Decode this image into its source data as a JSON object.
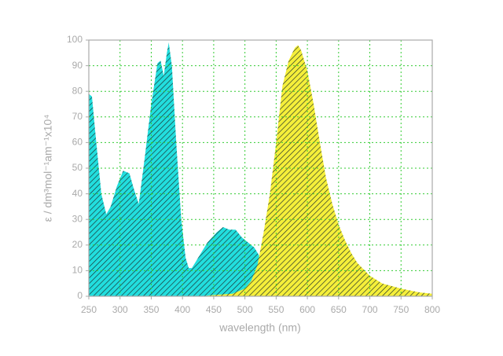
{
  "chart_data": {
    "type": "area",
    "xlabel": "wavelength (nm)",
    "ylabel": "ε / dm³mol⁻¹am⁻¹x10⁴",
    "xlim": [
      250,
      800
    ],
    "xticks": [
      250,
      300,
      350,
      400,
      450,
      500,
      550,
      600,
      650,
      700,
      750,
      800
    ],
    "ylim": [
      0,
      100
    ],
    "yticks": [
      0,
      10,
      20,
      30,
      40,
      50,
      60,
      70,
      80,
      90,
      100
    ],
    "grid": true,
    "series": [
      {
        "color": "#22dede",
        "x": [
          250,
          255,
          260,
          270,
          278,
          285,
          295,
          305,
          315,
          322,
          330,
          340,
          350,
          360,
          365,
          370,
          375,
          378,
          383,
          390,
          398,
          405,
          410,
          415,
          425,
          440,
          455,
          465,
          475,
          485,
          495,
          505,
          515,
          525,
          535,
          540
        ],
        "values": [
          79,
          78,
          65,
          40,
          32,
          35,
          43,
          49,
          48,
          42,
          36,
          55,
          75,
          91,
          92,
          86,
          95,
          99,
          90,
          60,
          30,
          15,
          11,
          11,
          15,
          21,
          25,
          27,
          26,
          26,
          23,
          21,
          19,
          15,
          5,
          0
        ]
      },
      {
        "color": "#f5ef3a",
        "x": [
          430,
          450,
          480,
          500,
          510,
          520,
          530,
          540,
          550,
          560,
          570,
          580,
          585,
          590,
          600,
          610,
          620,
          630,
          640,
          650,
          660,
          670,
          680,
          700,
          720,
          750,
          780,
          800
        ],
        "values": [
          0,
          0.5,
          1,
          3,
          6,
          12,
          25,
          40,
          60,
          82,
          92,
          97,
          98,
          96,
          88,
          75,
          60,
          46,
          36,
          28,
          22,
          17,
          13,
          8,
          5,
          3,
          1.5,
          1
        ]
      }
    ]
  }
}
